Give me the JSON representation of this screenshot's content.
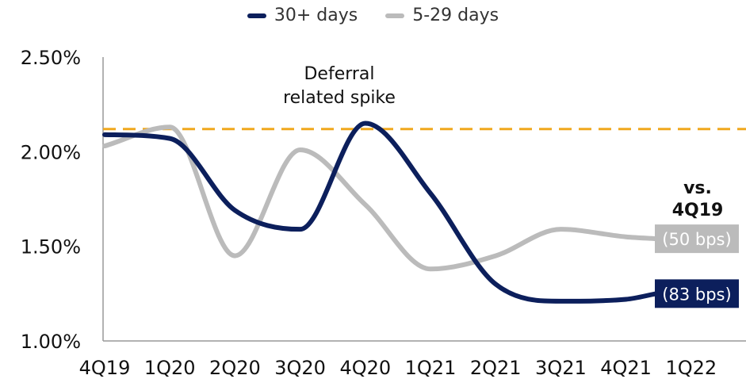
{
  "chart_data": {
    "type": "line",
    "categories": [
      "4Q19",
      "1Q20",
      "2Q20",
      "3Q20",
      "4Q20",
      "1Q21",
      "2Q21",
      "3Q21",
      "4Q21",
      "1Q22"
    ],
    "ylim": [
      1.0,
      2.5
    ],
    "yticks": [
      "1.00%",
      "1.50%",
      "2.00%",
      "2.50%"
    ],
    "ytick_values": [
      1.0,
      1.5,
      2.0,
      2.5
    ],
    "legend_position": "top-center",
    "series": [
      {
        "name": "30+ days",
        "color": "#0c1f5c",
        "values": [
          2.09,
          2.07,
          1.69,
          1.59,
          2.15,
          1.78,
          1.3,
          1.21,
          1.22,
          1.25
        ]
      },
      {
        "name": "5-29 days",
        "color": "#bbbbbb",
        "values": [
          2.03,
          2.13,
          1.45,
          2.01,
          1.72,
          1.38,
          1.45,
          1.59,
          1.55,
          1.54
        ]
      }
    ],
    "reference_line": {
      "value": 2.12,
      "color": "#f0a81e",
      "style": "dashed"
    },
    "annotation": {
      "text_lines": [
        "Deferral",
        "related spike"
      ]
    },
    "comparison": {
      "title_lines": [
        "vs.",
        "4Q19"
      ],
      "labels": [
        {
          "series": "5-29 days",
          "text": "(50 bps)",
          "color": "#bbbbbb"
        },
        {
          "series": "30+ days",
          "text": "(83 bps)",
          "color": "#0c1f5c"
        }
      ]
    }
  }
}
